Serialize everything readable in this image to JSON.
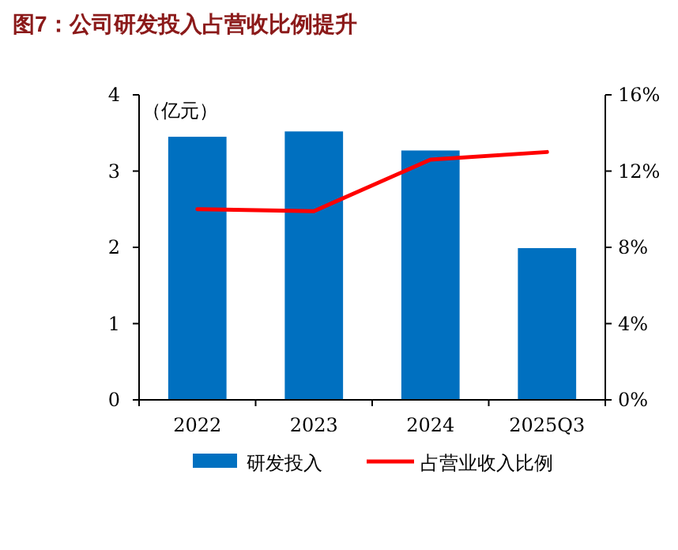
{
  "chart_data": {
    "type": "bar",
    "title": "图7：公司研发投入占营收比例提升",
    "ylabel": "（亿元）",
    "categories": [
      "2022",
      "2023",
      "2024",
      "2025Q3"
    ],
    "series": [
      {
        "name": "研发投入",
        "color": "#0070c0",
        "values": [
          3.45,
          3.52,
          3.27,
          1.99
        ]
      },
      {
        "name": "占营业收入比例",
        "type": "line",
        "axis": "y2",
        "color": "#ff0000",
        "values": [
          10.0,
          9.9,
          12.6,
          13.0
        ]
      }
    ],
    "ylim": [
      0,
      4
    ],
    "yticks": [
      0,
      1,
      2,
      3,
      4
    ],
    "y2lim": [
      0,
      16
    ],
    "y2ticks": [
      {
        "value": 0,
        "label": "0%"
      },
      {
        "value": 4,
        "label": "4%"
      },
      {
        "value": 8,
        "label": "8%"
      },
      {
        "value": 12,
        "label": "12%"
      },
      {
        "value": 16,
        "label": "16%"
      }
    ],
    "legend": "bottom",
    "grid": false
  }
}
